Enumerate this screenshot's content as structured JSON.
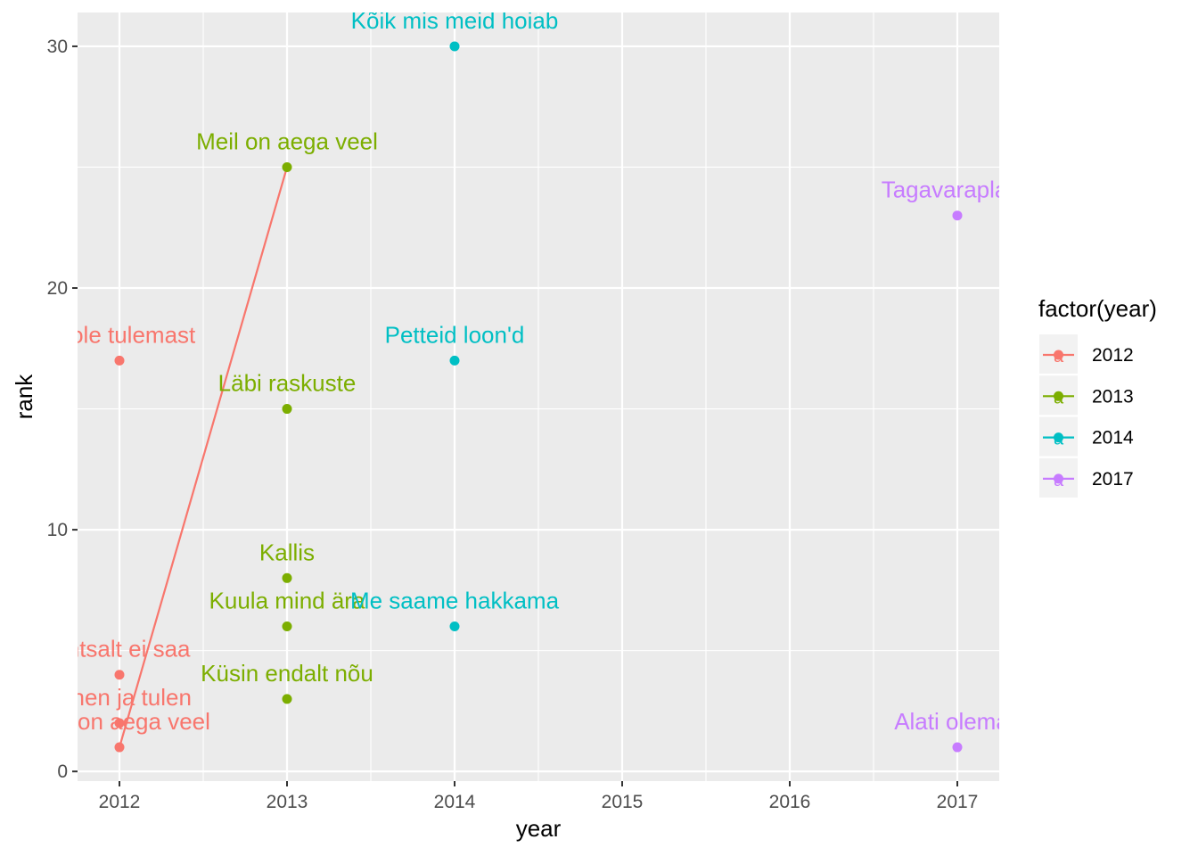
{
  "chart_data": {
    "type": "scatter",
    "xlabel": "year",
    "ylabel": "rank",
    "xlim": [
      2011.75,
      2017.25
    ],
    "ylim": [
      -0.4,
      31.4
    ],
    "x_ticks": [
      2012,
      2013,
      2014,
      2015,
      2016,
      2017
    ],
    "y_ticks": [
      0,
      10,
      20,
      30
    ],
    "grid": true,
    "legend": {
      "title": "factor(year)",
      "position": "right",
      "key_glyph": "a"
    },
    "series": [
      {
        "name": "2012",
        "color": "#F8766D",
        "points": [
          {
            "x": 2012,
            "y": 17,
            "label": "Ei ole tulemast"
          },
          {
            "x": 2012,
            "y": 4,
            "label": "Lihtsalt ei saa"
          },
          {
            "x": 2012,
            "y": 2,
            "label": "Minen ja tulen"
          },
          {
            "x": 2012,
            "y": 1,
            "label": "Meil on aega veel"
          }
        ],
        "line": [
          {
            "x": 2012,
            "y": 1
          },
          {
            "x": 2013,
            "y": 25
          }
        ]
      },
      {
        "name": "2013",
        "color": "#7CAE00",
        "points": [
          {
            "x": 2013,
            "y": 25,
            "label": "Meil on aega veel"
          },
          {
            "x": 2013,
            "y": 15,
            "label": "Läbi raskuste"
          },
          {
            "x": 2013,
            "y": 8,
            "label": "Kallis"
          },
          {
            "x": 2013,
            "y": 6,
            "label": "Kuula mind ära"
          },
          {
            "x": 2013,
            "y": 3,
            "label": "Küsin endalt nõu"
          }
        ]
      },
      {
        "name": "2014",
        "color": "#00BFC4",
        "points": [
          {
            "x": 2014,
            "y": 30,
            "label": "Kõik mis meid hoiab"
          },
          {
            "x": 2014,
            "y": 17,
            "label": "Petteid loon'd"
          },
          {
            "x": 2014,
            "y": 6,
            "label": "Me saame hakkama"
          }
        ]
      },
      {
        "name": "2017",
        "color": "#C77CFF",
        "points": [
          {
            "x": 2017,
            "y": 23,
            "label": "Tagavaraplaan"
          },
          {
            "x": 2017,
            "y": 1,
            "label": "Alati olemas"
          }
        ]
      }
    ]
  }
}
